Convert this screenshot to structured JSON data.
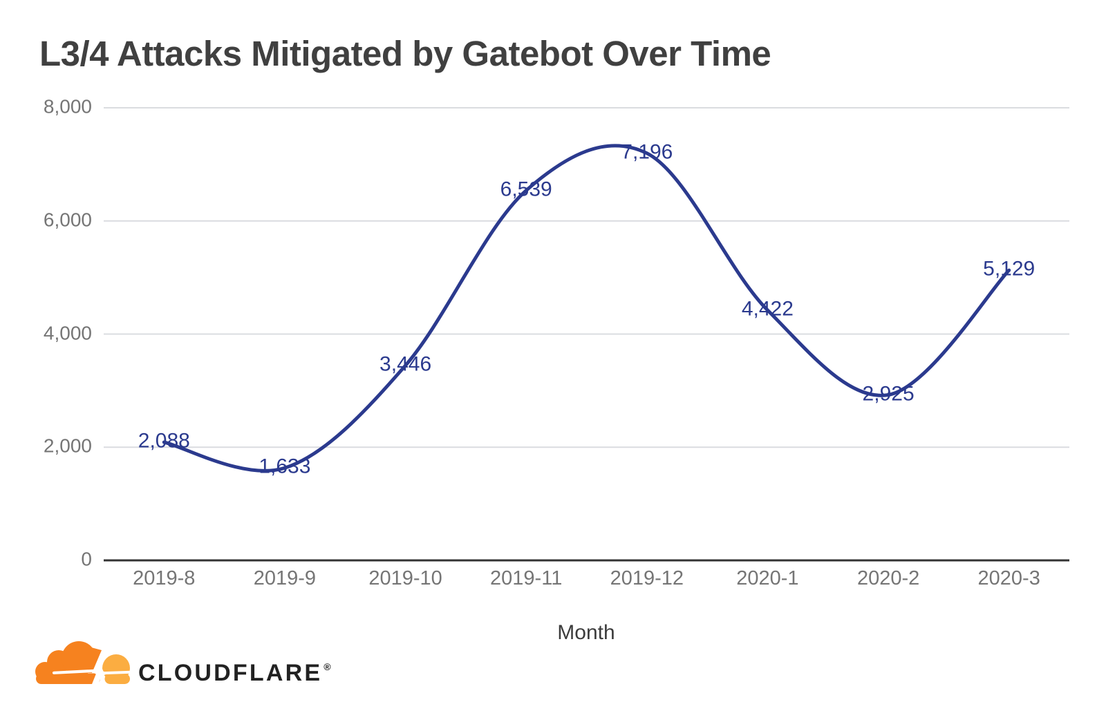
{
  "chart_data": {
    "type": "line",
    "title": "L3/4 Attacks Mitigated by Gatebot Over Time",
    "categories": [
      "2019-8",
      "2019-9",
      "2019-10",
      "2019-11",
      "2019-12",
      "2020-1",
      "2020-2",
      "2020-3"
    ],
    "values": [
      2088,
      1633,
      3446,
      6539,
      7196,
      4422,
      2925,
      5129
    ],
    "data_labels": [
      "2,088",
      "1,633",
      "3,446",
      "6,539",
      "7,196",
      "4,422",
      "2,925",
      "5,129"
    ],
    "y_ticks": [
      {
        "value": 0,
        "label": "0"
      },
      {
        "value": 2000,
        "label": "2,000"
      },
      {
        "value": 4000,
        "label": "4,000"
      },
      {
        "value": 6000,
        "label": "6,000"
      },
      {
        "value": 8000,
        "label": "8,000"
      }
    ],
    "xlabel": "Month",
    "ylabel": "",
    "ylim": [
      0,
      8000
    ],
    "grid": true,
    "legend_position": "none",
    "smooth": true,
    "line_color": "#2b3a8e",
    "label_color": "#2b3a8e",
    "grid_color": "#dadce0",
    "axis_color": "#333333",
    "tick_color": "#757575",
    "title_color": "#404040"
  },
  "branding": {
    "wordmark": "CLOUDFLARE",
    "registered": "®",
    "cloud_dark_color": "#f6821f",
    "cloud_light_color": "#fbad41"
  }
}
